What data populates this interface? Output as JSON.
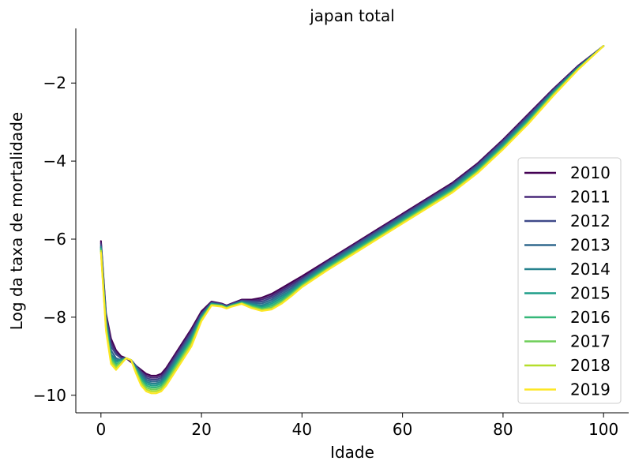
{
  "chart_data": {
    "type": "line",
    "title": "japan total",
    "xlabel": "Idade",
    "ylabel": "Log da taxa de mortalidade",
    "xlim": [
      -5,
      105
    ],
    "ylim": [
      -10.45,
      -0.6
    ],
    "xticks": [
      0,
      20,
      40,
      60,
      80,
      100
    ],
    "xtick_labels": [
      "0",
      "20",
      "40",
      "60",
      "80",
      "100"
    ],
    "yticks": [
      -10,
      -8,
      -6,
      -4,
      -2
    ],
    "ytick_labels": [
      "−10",
      "−8",
      "−6",
      "−4",
      "−2"
    ],
    "grid": false,
    "legend_position": "lower-right",
    "x": [
      0,
      1,
      2,
      3,
      4,
      5,
      6,
      7,
      8,
      9,
      10,
      11,
      12,
      13,
      14,
      15,
      16,
      18,
      20,
      22,
      24,
      25,
      26,
      28,
      30,
      32,
      34,
      36,
      38,
      40,
      45,
      50,
      55,
      60,
      65,
      70,
      75,
      80,
      85,
      90,
      95,
      100
    ],
    "series": [
      {
        "name": "2010",
        "color": "#440154",
        "values": [
          -6.05,
          -7.9,
          -8.55,
          -8.85,
          -9.0,
          -9.05,
          -9.15,
          -9.25,
          -9.35,
          -9.45,
          -9.5,
          -9.5,
          -9.45,
          -9.3,
          -9.1,
          -8.9,
          -8.7,
          -8.3,
          -7.85,
          -7.6,
          -7.65,
          -7.7,
          -7.65,
          -7.55,
          -7.55,
          -7.5,
          -7.4,
          -7.25,
          -7.1,
          -6.95,
          -6.55,
          -6.15,
          -5.75,
          -5.35,
          -4.95,
          -4.55,
          -4.05,
          -3.45,
          -2.8,
          -2.15,
          -1.55,
          -1.05
        ]
      },
      {
        "name": "2011",
        "color": "#482878",
        "values": [
          -6.1,
          -7.95,
          -8.65,
          -8.9,
          -9.05,
          -9.05,
          -9.1,
          -9.25,
          -9.4,
          -9.5,
          -9.55,
          -9.55,
          -9.5,
          -9.35,
          -9.15,
          -8.95,
          -8.75,
          -8.35,
          -7.9,
          -7.62,
          -7.66,
          -7.71,
          -7.66,
          -7.57,
          -7.58,
          -7.55,
          -7.45,
          -7.3,
          -7.15,
          -7.0,
          -6.58,
          -6.18,
          -5.78,
          -5.38,
          -4.98,
          -4.58,
          -4.08,
          -3.48,
          -2.83,
          -2.17,
          -1.57,
          -1.05
        ]
      },
      {
        "name": "2012",
        "color": "#3e4989",
        "values": [
          -6.15,
          -8.0,
          -8.75,
          -8.95,
          -9.05,
          -9.05,
          -9.1,
          -9.25,
          -9.4,
          -9.55,
          -9.6,
          -9.6,
          -9.55,
          -9.4,
          -9.2,
          -9.0,
          -8.8,
          -8.4,
          -7.92,
          -7.63,
          -7.67,
          -7.72,
          -7.67,
          -7.58,
          -7.6,
          -7.6,
          -7.5,
          -7.35,
          -7.2,
          -7.03,
          -6.6,
          -6.2,
          -5.8,
          -5.4,
          -5.0,
          -4.6,
          -4.1,
          -3.5,
          -2.86,
          -2.19,
          -1.58,
          -1.05
        ]
      },
      {
        "name": "2013",
        "color": "#31688e",
        "values": [
          -6.2,
          -8.05,
          -8.85,
          -9.05,
          -9.1,
          -9.05,
          -9.1,
          -9.3,
          -9.45,
          -9.6,
          -9.65,
          -9.65,
          -9.6,
          -9.45,
          -9.25,
          -9.05,
          -8.85,
          -8.45,
          -7.95,
          -7.64,
          -7.68,
          -7.73,
          -7.68,
          -7.6,
          -7.63,
          -7.65,
          -7.55,
          -7.4,
          -7.25,
          -7.06,
          -6.63,
          -6.23,
          -5.83,
          -5.43,
          -5.03,
          -4.63,
          -4.13,
          -3.53,
          -2.89,
          -2.21,
          -1.59,
          -1.05
        ]
      },
      {
        "name": "2014",
        "color": "#26828e",
        "values": [
          -6.2,
          -8.1,
          -8.95,
          -9.1,
          -9.1,
          -9.05,
          -9.1,
          -9.3,
          -9.5,
          -9.65,
          -9.7,
          -9.7,
          -9.65,
          -9.5,
          -9.3,
          -9.1,
          -8.9,
          -8.5,
          -7.98,
          -7.65,
          -7.69,
          -7.74,
          -7.69,
          -7.61,
          -7.66,
          -7.7,
          -7.6,
          -7.45,
          -7.3,
          -7.1,
          -6.66,
          -6.26,
          -5.86,
          -5.46,
          -5.06,
          -4.66,
          -4.16,
          -3.56,
          -2.92,
          -2.23,
          -1.6,
          -1.05
        ]
      },
      {
        "name": "2015",
        "color": "#1f9e89",
        "values": [
          -6.25,
          -8.15,
          -9.0,
          -9.15,
          -9.1,
          -9.05,
          -9.1,
          -9.35,
          -9.55,
          -9.7,
          -9.75,
          -9.75,
          -9.7,
          -9.55,
          -9.35,
          -9.15,
          -8.95,
          -8.55,
          -8.0,
          -7.66,
          -7.7,
          -7.75,
          -7.7,
          -7.62,
          -7.69,
          -7.74,
          -7.65,
          -7.5,
          -7.33,
          -7.13,
          -6.7,
          -6.3,
          -5.9,
          -5.5,
          -5.1,
          -4.7,
          -4.2,
          -3.6,
          -2.95,
          -2.25,
          -1.61,
          -1.05
        ]
      },
      {
        "name": "2016",
        "color": "#35b779",
        "values": [
          -6.25,
          -8.2,
          -9.05,
          -9.2,
          -9.15,
          -9.05,
          -9.1,
          -9.35,
          -9.6,
          -9.75,
          -9.8,
          -9.8,
          -9.75,
          -9.6,
          -9.4,
          -9.2,
          -9.0,
          -8.6,
          -8.02,
          -7.67,
          -7.7,
          -7.75,
          -7.7,
          -7.63,
          -7.71,
          -7.77,
          -7.7,
          -7.55,
          -7.37,
          -7.16,
          -6.73,
          -6.33,
          -5.93,
          -5.53,
          -5.13,
          -4.73,
          -4.23,
          -3.63,
          -2.98,
          -2.27,
          -1.62,
          -1.05
        ]
      },
      {
        "name": "2017",
        "color": "#6ece58",
        "values": [
          -6.3,
          -8.25,
          -9.1,
          -9.25,
          -9.15,
          -9.05,
          -9.1,
          -9.4,
          -9.65,
          -9.8,
          -9.85,
          -9.85,
          -9.8,
          -9.65,
          -9.45,
          -9.25,
          -9.05,
          -8.65,
          -8.05,
          -7.68,
          -7.71,
          -7.76,
          -7.71,
          -7.64,
          -7.73,
          -7.8,
          -7.75,
          -7.6,
          -7.4,
          -7.19,
          -6.76,
          -6.36,
          -5.96,
          -5.56,
          -5.16,
          -4.76,
          -4.26,
          -3.66,
          -3.01,
          -2.29,
          -1.63,
          -1.05
        ]
      },
      {
        "name": "2018",
        "color": "#b5de2b",
        "values": [
          -6.3,
          -8.3,
          -9.15,
          -9.3,
          -9.2,
          -9.05,
          -9.1,
          -9.4,
          -9.7,
          -9.85,
          -9.9,
          -9.9,
          -9.85,
          -9.7,
          -9.5,
          -9.3,
          -9.1,
          -8.7,
          -8.07,
          -7.69,
          -7.72,
          -7.77,
          -7.72,
          -7.65,
          -7.75,
          -7.82,
          -7.78,
          -7.63,
          -7.43,
          -7.21,
          -6.78,
          -6.38,
          -5.98,
          -5.58,
          -5.18,
          -4.78,
          -4.28,
          -3.68,
          -3.03,
          -2.31,
          -1.64,
          -1.05
        ]
      },
      {
        "name": "2019",
        "color": "#fde725",
        "values": [
          -6.35,
          -8.35,
          -9.2,
          -9.35,
          -9.2,
          -9.05,
          -9.1,
          -9.45,
          -9.75,
          -9.9,
          -9.95,
          -9.95,
          -9.9,
          -9.75,
          -9.55,
          -9.35,
          -9.15,
          -8.75,
          -8.1,
          -7.7,
          -7.73,
          -7.78,
          -7.73,
          -7.66,
          -7.77,
          -7.84,
          -7.8,
          -7.65,
          -7.45,
          -7.23,
          -6.8,
          -6.4,
          -6.0,
          -5.6,
          -5.2,
          -4.8,
          -4.3,
          -3.7,
          -3.05,
          -2.33,
          -1.65,
          -1.05
        ]
      }
    ]
  }
}
